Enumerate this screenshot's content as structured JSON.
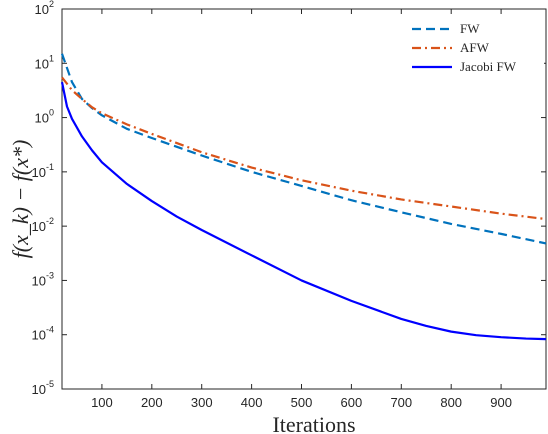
{
  "chart_data": {
    "type": "line",
    "title": "",
    "xlabel": "Iterations",
    "ylabel": "f(x_k) − f(x*)",
    "xlim": [
      20,
      990
    ],
    "ylim": [
      1e-05,
      100
    ],
    "yscale": "log",
    "grid": false,
    "legend_position": "top-right",
    "x_ticks": [
      100,
      200,
      300,
      400,
      500,
      600,
      700,
      800,
      900
    ],
    "y_ticks": [
      {
        "base": "10",
        "exp": "2",
        "value": 100
      },
      {
        "base": "10",
        "exp": "1",
        "value": 10
      },
      {
        "base": "10",
        "exp": "0",
        "value": 1
      },
      {
        "base": "10",
        "exp": "-1",
        "value": 0.1
      },
      {
        "base": "10",
        "exp": "-2",
        "value": 0.01
      },
      {
        "base": "10",
        "exp": "-3",
        "value": 0.001
      },
      {
        "base": "10",
        "exp": "-4",
        "value": 0.0001
      },
      {
        "base": "10",
        "exp": "-5",
        "value": 1e-05
      }
    ],
    "series": [
      {
        "name": "FW",
        "color": "#0072BD",
        "dash": "dashed",
        "x": [
          20,
          40,
          60,
          80,
          100,
          150,
          200,
          300,
          400,
          500,
          600,
          700,
          800,
          900,
          990
        ],
        "y": [
          15,
          4.5,
          2.2,
          1.5,
          1.1,
          0.62,
          0.42,
          0.2,
          0.1,
          0.055,
          0.03,
          0.018,
          0.011,
          0.0072,
          0.0048
        ]
      },
      {
        "name": "AFW",
        "color": "#D95319",
        "dash": "dashdot",
        "x": [
          20,
          40,
          60,
          80,
          100,
          150,
          200,
          300,
          400,
          500,
          600,
          700,
          800,
          900,
          990
        ],
        "y": [
          5.5,
          3.2,
          2.2,
          1.55,
          1.2,
          0.75,
          0.5,
          0.23,
          0.12,
          0.07,
          0.045,
          0.031,
          0.023,
          0.017,
          0.0135
        ]
      },
      {
        "name": "Jacobi FW",
        "color": "#0000FF",
        "dash": "solid",
        "x": [
          20,
          30,
          40,
          60,
          80,
          100,
          150,
          200,
          250,
          300,
          400,
          500,
          600,
          700,
          750,
          800,
          850,
          900,
          950,
          990
        ],
        "y": [
          4.5,
          1.6,
          0.95,
          0.45,
          0.25,
          0.15,
          0.06,
          0.029,
          0.015,
          0.0085,
          0.0029,
          0.001,
          0.00042,
          0.000195,
          0.000145,
          0.000114,
          9.8e-05,
          9e-05,
          8.5e-05,
          8.3e-05
        ]
      }
    ]
  }
}
